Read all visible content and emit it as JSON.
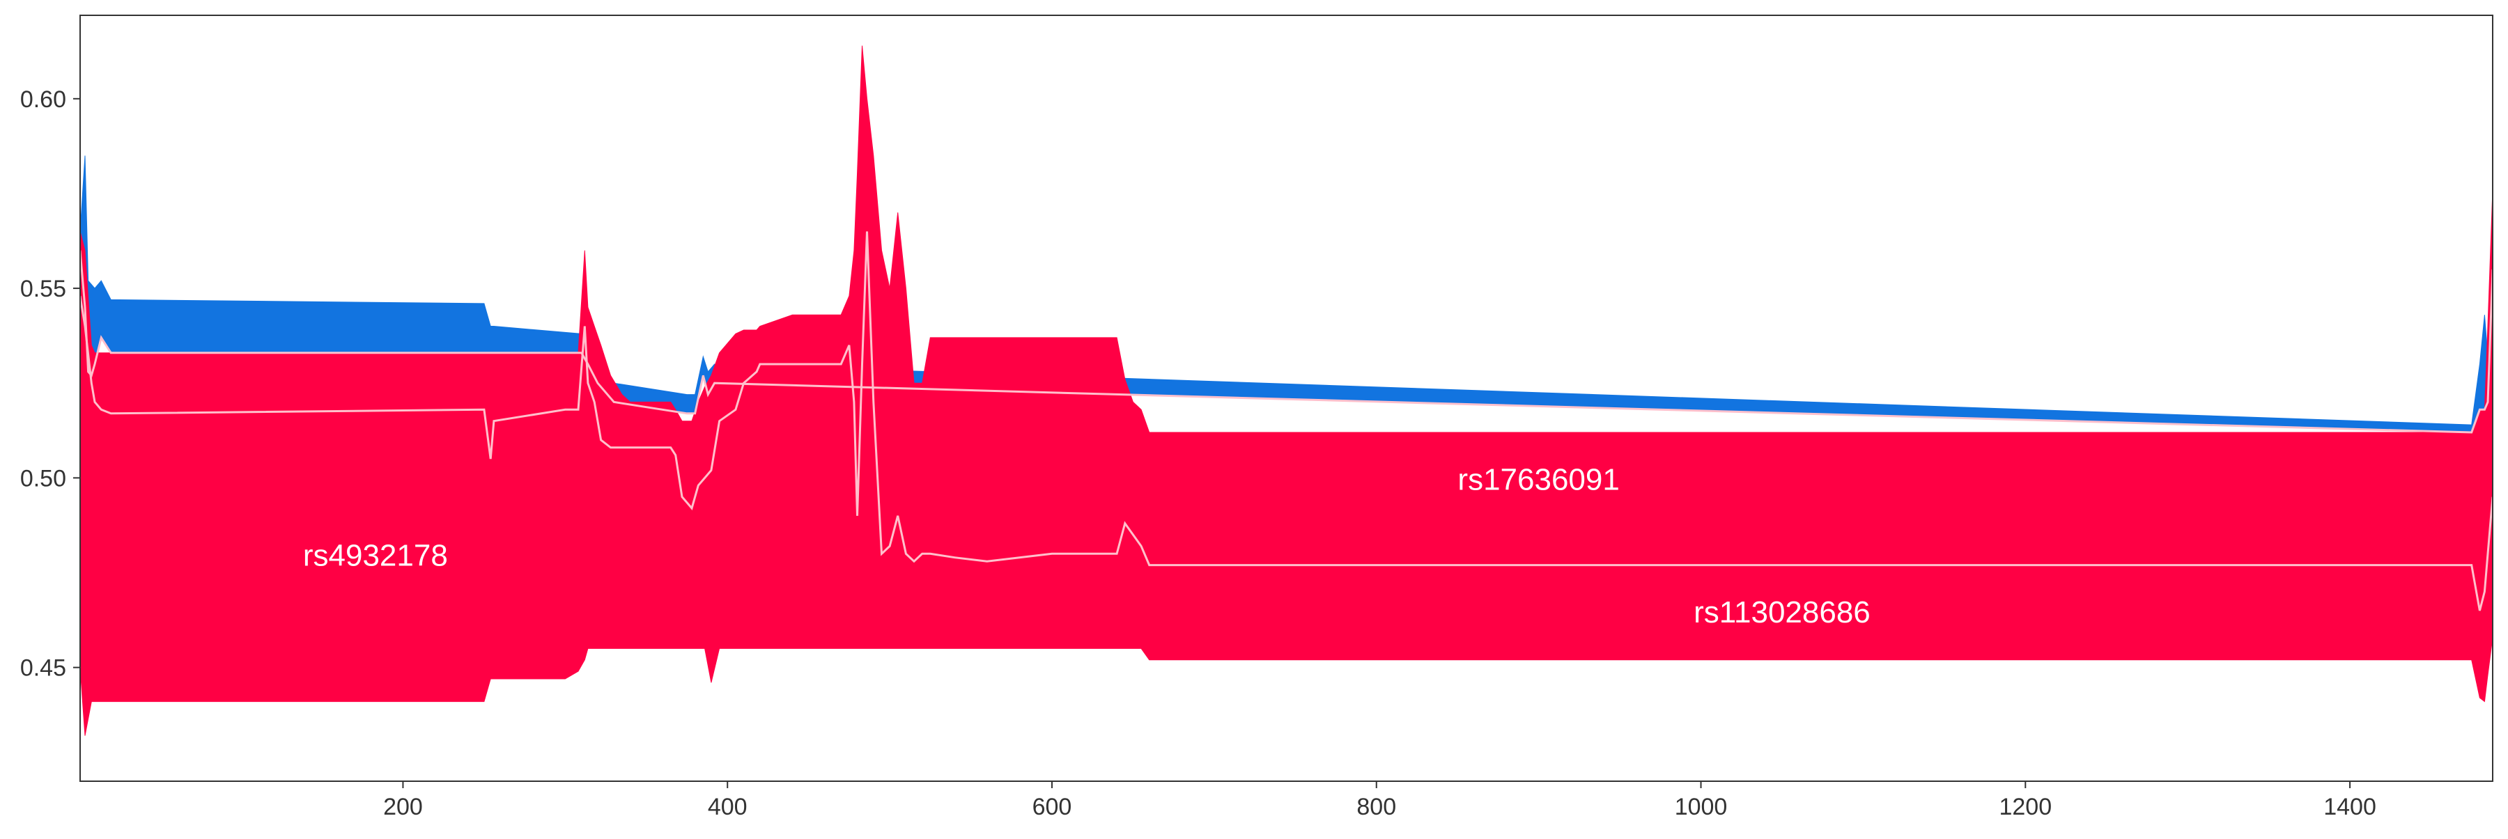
{
  "chart_data": {
    "type": "area",
    "title": "",
    "xlabel": "",
    "ylabel": "",
    "xlim": [
      1,
      1488
    ],
    "ylim": [
      0.42,
      0.622
    ],
    "grid": false,
    "legend": "none",
    "x_ticks": [
      200,
      400,
      600,
      800,
      1000,
      1200,
      1400
    ],
    "x_tick_labels": [
      "200",
      "400",
      "600",
      "800",
      "1000",
      "1200",
      "1400"
    ],
    "y_ticks": [
      0.45,
      0.5,
      0.55,
      0.6
    ],
    "y_tick_labels": [
      "0.45",
      "0.50",
      "0.55",
      "0.60"
    ],
    "colors": {
      "blue_band": "#1274e0",
      "red_band": "#ff0044",
      "divider": "#ffc0cc",
      "text": "#ffffff"
    },
    "series": [
      {
        "name": "rs4932178",
        "label_position": {
          "x": 183,
          "y": 0.479
        },
        "color": "#1274e0",
        "x": [
          1,
          4,
          6,
          8,
          10,
          14,
          20,
          250,
          254,
          256,
          310,
          314,
          320,
          330,
          375,
          380,
          385,
          388,
          392,
          1475,
          1480,
          1483,
          1485,
          1488
        ],
        "upper": [
          0.565,
          0.585,
          0.552,
          0.551,
          0.55,
          0.552,
          0.547,
          0.546,
          0.54,
          0.54,
          0.538,
          0.545,
          0.53,
          0.525,
          0.522,
          0.522,
          0.532,
          0.528,
          0.53,
          0.514,
          0.53,
          0.543,
          0.532,
          0.56
        ],
        "lower": [
          0.56,
          0.545,
          0.528,
          0.527,
          0.53,
          0.537,
          0.533,
          0.533,
          0.533,
          0.533,
          0.533,
          0.53,
          0.525,
          0.52,
          0.517,
          0.517,
          0.527,
          0.522,
          0.525,
          0.512,
          0.518,
          0.518,
          0.52,
          0.555
        ]
      },
      {
        "name": "rs17636091",
        "label_position": {
          "x": 900,
          "y": 0.499
        },
        "color": "#ff0044",
        "x": [
          1,
          4,
          8,
          10,
          14,
          20,
          250,
          254,
          256,
          300,
          308,
          312,
          314,
          318,
          322,
          328,
          335,
          340,
          365,
          368,
          372,
          378,
          382,
          386,
          390,
          395,
          405,
          410,
          418,
          420,
          440,
          450,
          470,
          475,
          478,
          480,
          483,
          486,
          490,
          495,
          500,
          505,
          510,
          515,
          520,
          525,
          540,
          560,
          600,
          640,
          645,
          650,
          655,
          660,
          700,
          900,
          1100,
          1300,
          1475,
          1480,
          1483,
          1485,
          1488
        ],
        "upper": [
          0.565,
          0.56,
          0.535,
          0.533,
          0.533,
          0.533,
          0.533,
          0.533,
          0.533,
          0.533,
          0.533,
          0.56,
          0.545,
          0.54,
          0.535,
          0.527,
          0.522,
          0.52,
          0.52,
          0.518,
          0.515,
          0.515,
          0.52,
          0.524,
          0.527,
          0.533,
          0.538,
          0.539,
          0.539,
          0.54,
          0.543,
          0.543,
          0.543,
          0.548,
          0.56,
          0.58,
          0.614,
          0.6,
          0.585,
          0.56,
          0.55,
          0.57,
          0.55,
          0.525,
          0.525,
          0.537,
          0.537,
          0.537,
          0.537,
          0.537,
          0.526,
          0.52,
          0.518,
          0.512,
          0.512,
          0.512,
          0.512,
          0.512,
          0.512,
          0.518,
          0.518,
          0.54,
          0.576
        ],
        "lower": [
          0.548,
          0.54,
          0.525,
          0.52,
          0.518,
          0.517,
          0.518,
          0.505,
          0.515,
          0.518,
          0.518,
          0.54,
          0.525,
          0.52,
          0.51,
          0.508,
          0.508,
          0.508,
          0.508,
          0.506,
          0.495,
          0.492,
          0.498,
          0.5,
          0.502,
          0.515,
          0.518,
          0.525,
          0.528,
          0.53,
          0.53,
          0.53,
          0.53,
          0.535,
          0.52,
          0.49,
          0.53,
          0.565,
          0.52,
          0.48,
          0.482,
          0.49,
          0.48,
          0.478,
          0.48,
          0.48,
          0.479,
          0.478,
          0.48,
          0.48,
          0.488,
          0.485,
          0.482,
          0.477,
          0.477,
          0.477,
          0.477,
          0.477,
          0.477,
          0.465,
          0.47,
          0.48,
          0.495
        ]
      },
      {
        "name": "rs113028686",
        "label_position": {
          "x": 1050,
          "y": 0.464
        },
        "color": "#ff0044",
        "x": [
          1,
          4,
          8,
          10,
          14,
          20,
          250,
          254,
          256,
          300,
          308,
          312,
          314,
          318,
          322,
          328,
          335,
          340,
          365,
          368,
          372,
          378,
          382,
          386,
          390,
          395,
          405,
          410,
          418,
          420,
          440,
          450,
          470,
          475,
          478,
          480,
          483,
          486,
          490,
          495,
          500,
          505,
          510,
          515,
          520,
          525,
          540,
          560,
          600,
          640,
          645,
          650,
          655,
          660,
          700,
          900,
          1100,
          1300,
          1475,
          1480,
          1483,
          1485,
          1488
        ],
        "upper": [
          0.548,
          0.54,
          0.525,
          0.52,
          0.518,
          0.517,
          0.518,
          0.505,
          0.515,
          0.518,
          0.518,
          0.54,
          0.525,
          0.52,
          0.51,
          0.508,
          0.508,
          0.508,
          0.508,
          0.506,
          0.495,
          0.492,
          0.498,
          0.5,
          0.502,
          0.515,
          0.518,
          0.525,
          0.528,
          0.53,
          0.53,
          0.53,
          0.53,
          0.535,
          0.52,
          0.49,
          0.53,
          0.565,
          0.52,
          0.48,
          0.482,
          0.49,
          0.48,
          0.478,
          0.48,
          0.48,
          0.479,
          0.478,
          0.48,
          0.48,
          0.488,
          0.485,
          0.482,
          0.477,
          0.477,
          0.477,
          0.477,
          0.477,
          0.477,
          0.465,
          0.47,
          0.48,
          0.495
        ],
        "lower": [
          0.45,
          0.432,
          0.441,
          0.441,
          0.441,
          0.441,
          0.441,
          0.447,
          0.447,
          0.447,
          0.449,
          0.452,
          0.455,
          0.455,
          0.455,
          0.455,
          0.455,
          0.455,
          0.455,
          0.455,
          0.455,
          0.455,
          0.455,
          0.455,
          0.446,
          0.455,
          0.455,
          0.455,
          0.455,
          0.455,
          0.455,
          0.455,
          0.455,
          0.455,
          0.455,
          0.455,
          0.455,
          0.455,
          0.455,
          0.455,
          0.455,
          0.455,
          0.455,
          0.455,
          0.455,
          0.455,
          0.455,
          0.455,
          0.455,
          0.455,
          0.455,
          0.455,
          0.455,
          0.452,
          0.452,
          0.452,
          0.452,
          0.452,
          0.452,
          0.442,
          0.441,
          0.448,
          0.458
        ]
      }
    ]
  }
}
